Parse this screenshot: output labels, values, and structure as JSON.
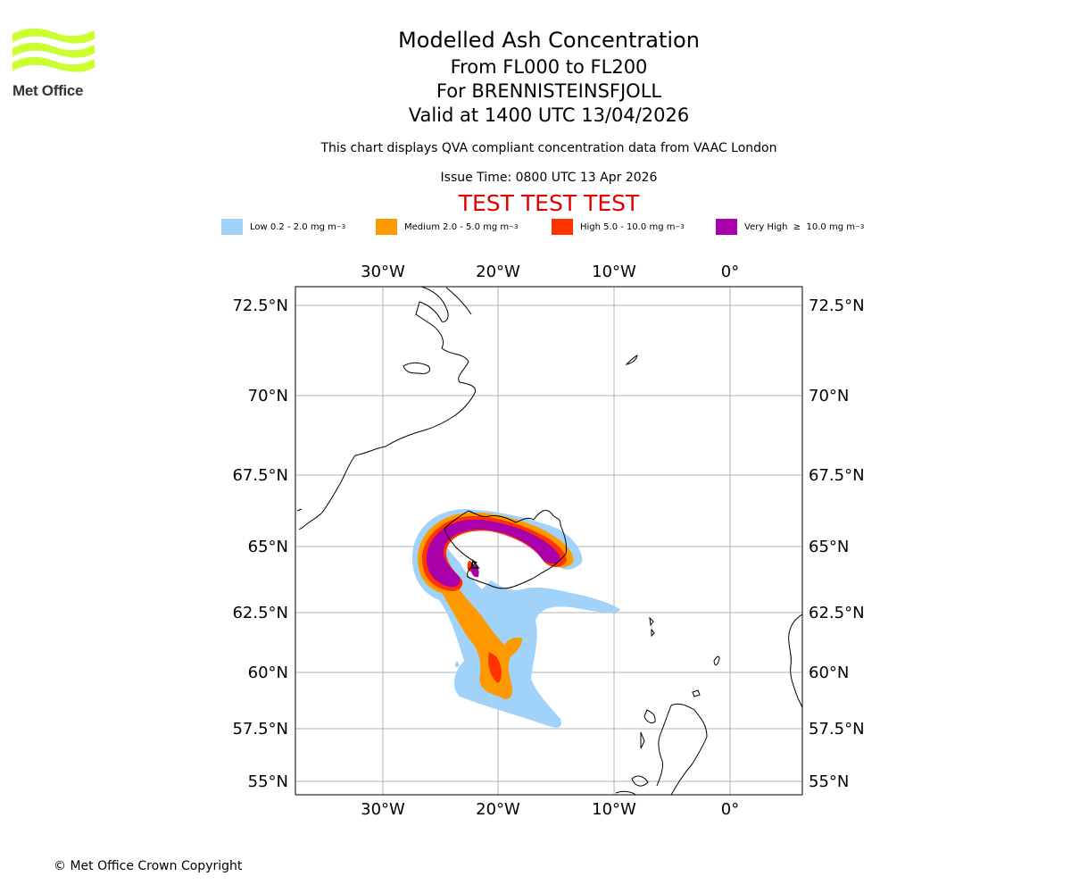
{
  "logo": {
    "name": "Met Office",
    "color": "#ccff33"
  },
  "header": {
    "title": "Modelled Ash Concentration",
    "levels": "From FL000 to FL200",
    "volcano": "For BRENNISTEINSFJOLL",
    "valid": "Valid at 1400 UTC 13/04/2026",
    "description": "This chart displays QVA compliant concentration data from VAAC London",
    "issue_time": "Issue Time: 0800 UTC 13 Apr 2026",
    "test_banner": "TEST TEST TEST"
  },
  "legend": [
    {
      "label": "Low 0.2 - 2.0 mg m",
      "unit_exp": "−3",
      "color": "#a0d2fa"
    },
    {
      "label": "Medium 2.0 - 5.0 mg m",
      "unit_exp": "−3",
      "color": "#ff9900"
    },
    {
      "label": "High 5.0 - 10.0 mg m",
      "unit_exp": "−3",
      "color": "#ff3300"
    },
    {
      "label": "Very High  ≥  10.0 mg m",
      "unit_exp": "−3",
      "color": "#aa00aa"
    }
  ],
  "map": {
    "lon_ticks": [
      "30°W",
      "20°W",
      "10°W",
      "0°"
    ],
    "lat_ticks": [
      "72.5°N",
      "70°N",
      "67.5°N",
      "65°N",
      "62.5°N",
      "60°N",
      "57.5°N",
      "55°N"
    ]
  },
  "footer": {
    "copyright": "© Met Office Crown Copyright"
  }
}
